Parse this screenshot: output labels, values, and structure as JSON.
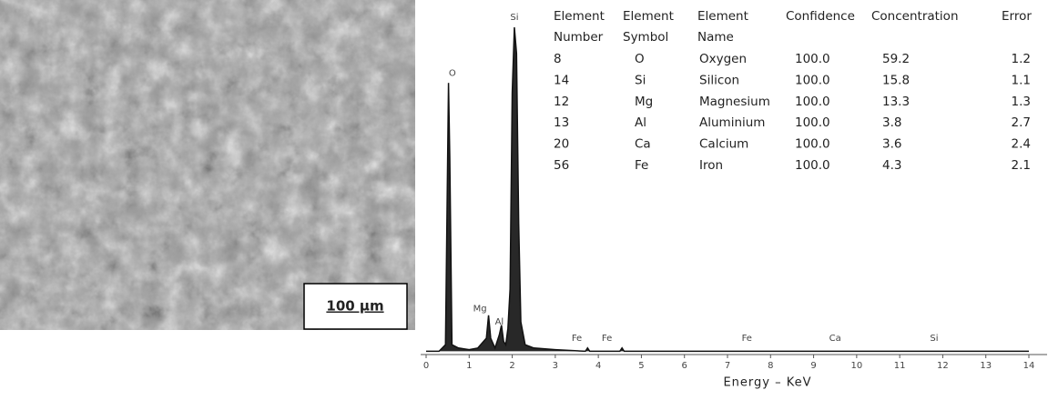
{
  "image": {
    "scale_bar": "100 µm"
  },
  "chart_data": {
    "type": "line",
    "xlabel": "Energy – KeV",
    "xlim": [
      0,
      14
    ],
    "xticks": [
      0,
      1,
      2,
      3,
      4,
      5,
      6,
      7,
      8,
      9,
      10,
      11,
      12,
      13,
      14
    ],
    "ylim": [
      0,
      100
    ],
    "series": [
      {
        "color": "#111111",
        "x": [
          0,
          0.3,
          0.45,
          0.5,
          0.52,
          0.55,
          0.6,
          0.75,
          1.0,
          1.2,
          1.4,
          1.45,
          1.5,
          1.6,
          1.7,
          1.75,
          1.8,
          1.85,
          1.9,
          1.95,
          2.0,
          2.05,
          2.1,
          2.15,
          2.2,
          2.3,
          2.5,
          3.0,
          3.7,
          3.75,
          3.8,
          4.5,
          4.55,
          4.6,
          6,
          7,
          8,
          10,
          12,
          14
        ],
        "values": [
          1,
          1,
          3,
          60,
          83,
          60,
          3,
          2,
          1.5,
          2,
          5,
          12,
          5,
          2,
          6,
          9,
          4,
          3,
          8,
          20,
          80,
          100,
          92,
          40,
          10,
          3,
          2,
          1.5,
          1,
          2,
          1,
          1,
          2,
          1,
          1,
          1,
          1,
          1,
          1,
          1
        ]
      }
    ],
    "annotations": [
      {
        "text": "O",
        "x": 0.61,
        "y": 86
      },
      {
        "text": "Si",
        "x": 2.05,
        "y": 103
      },
      {
        "text": "Mg",
        "x": 1.25,
        "y": 14
      },
      {
        "text": "Al",
        "x": 1.7,
        "y": 10
      },
      {
        "text": "Fe",
        "x": 3.5,
        "y": 5
      },
      {
        "text": "Fe",
        "x": 4.2,
        "y": 5
      },
      {
        "text": "Fe",
        "x": 7.45,
        "y": 5
      },
      {
        "text": "Ca",
        "x": 9.5,
        "y": 5
      },
      {
        "text": "Si",
        "x": 11.8,
        "y": 5
      }
    ]
  },
  "table": {
    "header": [
      [
        "Element",
        "Number"
      ],
      [
        "Element",
        "Symbol"
      ],
      [
        "Element",
        "Name"
      ],
      [
        "Confidence"
      ],
      [
        "Concentration"
      ],
      [
        "Error"
      ]
    ],
    "rows": [
      [
        "8",
        "O",
        "Oxygen",
        "100.0",
        "59.2",
        "1.2"
      ],
      [
        "14",
        "Si",
        "Silicon",
        "100.0",
        "15.8",
        "1.1"
      ],
      [
        "12",
        "Mg",
        "Magnesium",
        "100.0",
        "13.3",
        "1.3"
      ],
      [
        "13",
        "Al",
        "Aluminium",
        "100.0",
        "3.8",
        "2.7"
      ],
      [
        "20",
        "Ca",
        "Calcium",
        "100.0",
        "3.6",
        "2.4"
      ],
      [
        "56",
        "Fe",
        "Iron",
        "100.0",
        "4.3",
        "2.1"
      ]
    ]
  }
}
